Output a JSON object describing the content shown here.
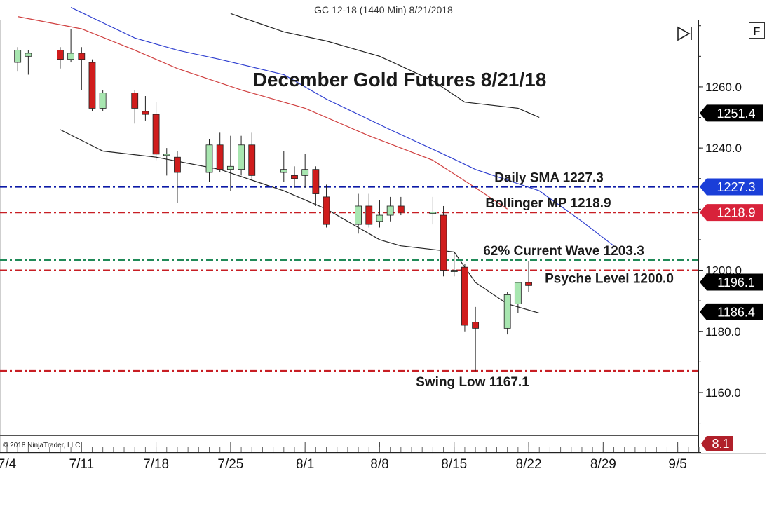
{
  "window": {
    "title": "GC 12-18 (1440 Min)  8/21/2018",
    "f_button": "F",
    "copyright": "© 2018 NinjaTrader, LLC"
  },
  "chart_data": {
    "type": "candlestick",
    "title": "December Gold Futures 8/21/18",
    "y_axis": {
      "ticks": [
        1260.0,
        1240.0,
        1200.0,
        1180.0,
        1160.0
      ],
      "ylim": [
        1146,
        1282
      ],
      "position": "right"
    },
    "x_axis": {
      "ticks": [
        "7/4",
        "7/11",
        "7/18",
        "7/25",
        "8/1",
        "8/8",
        "8/15",
        "8/22",
        "8/29",
        "9/5"
      ],
      "tick_dates": [
        "2018-07-04",
        "2018-07-11",
        "2018-07-18",
        "2018-07-25",
        "2018-08-01",
        "2018-08-08",
        "2018-08-15",
        "2018-08-22",
        "2018-08-29",
        "2018-09-05"
      ],
      "range": [
        "2018-07-04",
        "2018-09-07"
      ]
    },
    "candles": [
      {
        "date": "2018-07-05",
        "o": 1268,
        "h": 1273,
        "l": 1265,
        "c": 1272
      },
      {
        "date": "2018-07-06",
        "o": 1270,
        "h": 1272,
        "l": 1264,
        "c": 1271
      },
      {
        "date": "2018-07-09",
        "o": 1272,
        "h": 1273,
        "l": 1266,
        "c": 1269
      },
      {
        "date": "2018-07-10",
        "o": 1269,
        "h": 1279,
        "l": 1268,
        "c": 1271
      },
      {
        "date": "2018-07-11",
        "o": 1271,
        "h": 1273,
        "l": 1259,
        "c": 1269
      },
      {
        "date": "2018-07-12",
        "o": 1268,
        "h": 1269,
        "l": 1252,
        "c": 1253
      },
      {
        "date": "2018-07-13",
        "o": 1253,
        "h": 1259,
        "l": 1252,
        "c": 1258
      },
      {
        "date": "2018-07-16",
        "o": 1258,
        "h": 1259,
        "l": 1248,
        "c": 1253
      },
      {
        "date": "2018-07-17",
        "o": 1252,
        "h": 1257,
        "l": 1249,
        "c": 1251
      },
      {
        "date": "2018-07-18",
        "o": 1251,
        "h": 1255,
        "l": 1236,
        "c": 1238
      },
      {
        "date": "2018-07-19",
        "o": 1238,
        "h": 1240,
        "l": 1231,
        "c": 1238
      },
      {
        "date": "2018-07-20",
        "o": 1237,
        "h": 1239,
        "l": 1222,
        "c": 1232
      },
      {
        "date": "2018-07-23",
        "o": 1232,
        "h": 1243,
        "l": 1229,
        "c": 1241
      },
      {
        "date": "2018-07-24",
        "o": 1241,
        "h": 1245,
        "l": 1232,
        "c": 1233
      },
      {
        "date": "2018-07-25",
        "o": 1233,
        "h": 1244,
        "l": 1226,
        "c": 1234
      },
      {
        "date": "2018-07-26",
        "o": 1233,
        "h": 1244,
        "l": 1231,
        "c": 1241
      },
      {
        "date": "2018-07-27",
        "o": 1241,
        "h": 1245,
        "l": 1230,
        "c": 1231
      },
      {
        "date": "2018-07-30",
        "o": 1232,
        "h": 1239,
        "l": 1229,
        "c": 1233
      },
      {
        "date": "2018-07-31",
        "o": 1231,
        "h": 1234,
        "l": 1227,
        "c": 1230
      },
      {
        "date": "2018-08-01",
        "o": 1231,
        "h": 1238,
        "l": 1227,
        "c": 1233
      },
      {
        "date": "2018-08-02",
        "o": 1233,
        "h": 1234,
        "l": 1221,
        "c": 1225
      },
      {
        "date": "2018-08-03",
        "o": 1224,
        "h": 1228,
        "l": 1214,
        "c": 1215
      },
      {
        "date": "2018-08-06",
        "o": 1215,
        "h": 1225,
        "l": 1212,
        "c": 1221
      },
      {
        "date": "2018-08-07",
        "o": 1221,
        "h": 1225,
        "l": 1214,
        "c": 1215
      },
      {
        "date": "2018-08-08",
        "o": 1216,
        "h": 1223,
        "l": 1214,
        "c": 1218
      },
      {
        "date": "2018-08-09",
        "o": 1218,
        "h": 1224,
        "l": 1216,
        "c": 1221
      },
      {
        "date": "2018-08-10",
        "o": 1221,
        "h": 1224,
        "l": 1218,
        "c": 1219
      },
      {
        "date": "2018-08-13",
        "o": 1219,
        "h": 1224,
        "l": 1215,
        "c": 1219
      },
      {
        "date": "2018-08-14",
        "o": 1218,
        "h": 1221,
        "l": 1198,
        "c": 1200
      },
      {
        "date": "2018-08-15",
        "o": 1200,
        "h": 1206,
        "l": 1198,
        "c": 1200
      },
      {
        "date": "2018-08-16",
        "o": 1201,
        "h": 1202,
        "l": 1180,
        "c": 1182
      },
      {
        "date": "2018-08-17",
        "o": 1183,
        "h": 1188,
        "l": 1167,
        "c": 1181
      },
      {
        "date": "2018-08-20",
        "o": 1181,
        "h": 1193,
        "l": 1179,
        "c": 1192
      },
      {
        "date": "2018-08-21",
        "o": 1189,
        "h": 1196,
        "l": 1186,
        "c": 1196
      },
      {
        "date": "2018-08-22",
        "o": 1196,
        "h": 1203,
        "l": 1193,
        "c": 1195
      }
    ],
    "indicator_lines": [
      {
        "color": "#3040d0",
        "points": [
          [
            "2018-07-10",
            1286
          ],
          [
            "2018-07-16",
            1276
          ],
          [
            "2018-07-20",
            1272
          ],
          [
            "2018-07-24",
            1269
          ],
          [
            "2018-07-30",
            1264
          ],
          [
            "2018-08-03",
            1256
          ],
          [
            "2018-08-09",
            1246
          ],
          [
            "2018-08-14",
            1238
          ],
          [
            "2018-08-17",
            1233
          ],
          [
            "2018-08-23",
            1226
          ],
          [
            "2018-08-27",
            1216
          ],
          [
            "2018-08-30",
            1208
          ]
        ]
      },
      {
        "color": "#d04040",
        "points": [
          [
            "2018-07-05",
            1283
          ],
          [
            "2018-07-11",
            1279
          ],
          [
            "2018-07-16",
            1272
          ],
          [
            "2018-07-20",
            1266
          ],
          [
            "2018-07-26",
            1259
          ],
          [
            "2018-08-01",
            1253
          ],
          [
            "2018-08-07",
            1244
          ],
          [
            "2018-08-13",
            1236
          ],
          [
            "2018-08-17",
            1227
          ],
          [
            "2018-08-20",
            1220
          ]
        ]
      },
      {
        "color": "#222222",
        "points": [
          [
            "2018-07-25",
            1284
          ],
          [
            "2018-07-30",
            1278
          ],
          [
            "2018-08-03",
            1275
          ],
          [
            "2018-08-08",
            1270
          ],
          [
            "2018-08-13",
            1262
          ],
          [
            "2018-08-16",
            1255
          ],
          [
            "2018-08-21",
            1253
          ],
          [
            "2018-08-23",
            1250
          ]
        ]
      },
      {
        "color": "#222222",
        "points": [
          [
            "2018-07-09",
            1246
          ],
          [
            "2018-07-13",
            1239
          ],
          [
            "2018-07-18",
            1237
          ],
          [
            "2018-07-24",
            1233
          ],
          [
            "2018-07-30",
            1226
          ],
          [
            "2018-08-03",
            1220
          ],
          [
            "2018-08-08",
            1210
          ],
          [
            "2018-08-10",
            1208
          ],
          [
            "2018-08-15",
            1206
          ],
          [
            "2018-08-17",
            1196
          ],
          [
            "2018-08-20",
            1189
          ],
          [
            "2018-08-23",
            1186
          ]
        ]
      }
    ],
    "hlines": [
      {
        "y": 1227.3,
        "color": "#0c1aa6",
        "style": "dashdot",
        "label": "Daily SMA 1227.3",
        "badge": "1227.3",
        "badge_color": "#1a3ed8"
      },
      {
        "y": 1218.9,
        "color": "#c81e24",
        "style": "dashdot",
        "label": "Bollinger MP 1218.9",
        "badge": "1218.9",
        "badge_color": "#d8223a"
      },
      {
        "y": 1203.3,
        "color": "#1f8a58",
        "style": "dashdot",
        "label": "62% Current Wave 1203.3"
      },
      {
        "y": 1200.0,
        "color": "#c81e24",
        "style": "dashdot",
        "label": "Psyche Level 1200.0"
      },
      {
        "y": 1167.1,
        "color": "#c81e24",
        "style": "dashdot",
        "label": "Swing Low 1167.1"
      }
    ],
    "price_badges": [
      {
        "value": "1251.4",
        "y": 1251.4,
        "color": "#000000"
      },
      {
        "value": "1196.1",
        "y": 1196.1,
        "color": "#000000"
      },
      {
        "value": "1186.4",
        "y": 1186.4,
        "color": "#000000"
      }
    ],
    "lower_panel": {
      "value": "8.1",
      "color": "#b0202a"
    },
    "colors": {
      "up": "#a8e6b0",
      "down": "#d01c1c",
      "outline": "#222222",
      "grid": "#aaaaaa"
    }
  }
}
